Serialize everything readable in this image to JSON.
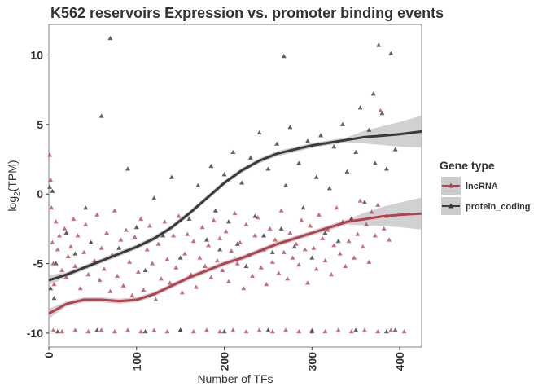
{
  "chart_data": {
    "type": "scatter",
    "title": "K562 reservoirs Expression vs. promoter binding events",
    "xlabel": "Number of TFs",
    "ylabel_main": "log",
    "ylabel_sub": "2",
    "ylabel_tail": "(TPM)",
    "xlim": [
      0,
      425
    ],
    "ylim": [
      -11,
      12.2
    ],
    "xticks": [
      0,
      100,
      200,
      300,
      400
    ],
    "xtick_labels": [
      "0",
      "100",
      "200",
      "300",
      "400"
    ],
    "yticks": [
      -10,
      -5,
      0,
      5,
      10
    ],
    "ytick_labels": [
      "-10",
      "-5",
      "0",
      "5",
      "10"
    ],
    "grid": false,
    "legend": {
      "title": "Gene type",
      "position": "right",
      "entries": [
        "lncRNA",
        "protein_coding"
      ]
    },
    "series": [
      {
        "name": "lncRNA",
        "color": "#b5404e",
        "marker": "triangle",
        "points": [
          [
            1,
            2.8
          ],
          [
            2,
            1.0
          ],
          [
            3,
            -1.0
          ],
          [
            4,
            -3.5
          ],
          [
            5,
            -5.0
          ],
          [
            6,
            -6.5
          ],
          [
            8,
            -2.0
          ],
          [
            10,
            -4.0
          ],
          [
            12,
            -3.0
          ],
          [
            15,
            -5.5
          ],
          [
            18,
            -2.5
          ],
          [
            20,
            -6.0
          ],
          [
            22,
            -4.5
          ],
          [
            25,
            -3.8
          ],
          [
            28,
            -1.8
          ],
          [
            30,
            -5.2
          ],
          [
            33,
            -3.0
          ],
          [
            36,
            -6.8
          ],
          [
            40,
            -4.2
          ],
          [
            42,
            -2.2
          ],
          [
            45,
            -5.8
          ],
          [
            48,
            -3.5
          ],
          [
            52,
            -4.8
          ],
          [
            55,
            -1.5
          ],
          [
            58,
            -6.2
          ],
          [
            60,
            -3.9
          ],
          [
            63,
            -5.4
          ],
          [
            66,
            -2.8
          ],
          [
            70,
            -7.0
          ],
          [
            72,
            -4.4
          ],
          [
            75,
            -1.2
          ],
          [
            78,
            -5.9
          ],
          [
            82,
            -3.3
          ],
          [
            85,
            -6.6
          ],
          [
            88,
            -2.6
          ],
          [
            92,
            -4.9
          ],
          [
            95,
            -7.3
          ],
          [
            98,
            -3.1
          ],
          [
            102,
            -5.6
          ],
          [
            105,
            -1.8
          ],
          [
            108,
            -6.9
          ],
          [
            112,
            -4.0
          ],
          [
            115,
            -2.3
          ],
          [
            118,
            -5.0
          ],
          [
            122,
            -7.6
          ],
          [
            125,
            -3.6
          ],
          [
            128,
            -6.1
          ],
          [
            132,
            -2.0
          ],
          [
            135,
            -4.7
          ],
          [
            138,
            -6.4
          ],
          [
            142,
            -3.0
          ],
          [
            145,
            -5.3
          ],
          [
            148,
            -1.6
          ],
          [
            152,
            -7.1
          ],
          [
            155,
            -4.3
          ],
          [
            158,
            -2.9
          ],
          [
            162,
            -5.8
          ],
          [
            165,
            -3.4
          ],
          [
            168,
            -6.7
          ],
          [
            172,
            -4.6
          ],
          [
            175,
            -2.4
          ],
          [
            178,
            -5.2
          ],
          [
            182,
            -3.7
          ],
          [
            185,
            -6.0
          ],
          [
            188,
            -1.9
          ],
          [
            192,
            -4.8
          ],
          [
            195,
            -3.2
          ],
          [
            198,
            -5.5
          ],
          [
            202,
            -2.7
          ],
          [
            205,
            -6.3
          ],
          [
            208,
            -4.1
          ],
          [
            212,
            -1.4
          ],
          [
            215,
            -5.0
          ],
          [
            218,
            -3.5
          ],
          [
            222,
            -6.8
          ],
          [
            225,
            -2.2
          ],
          [
            228,
            -4.4
          ],
          [
            232,
            -5.9
          ],
          [
            235,
            -3.0
          ],
          [
            238,
            -1.7
          ],
          [
            242,
            -5.3
          ],
          [
            245,
            -4.0
          ],
          [
            248,
            -6.5
          ],
          [
            252,
            -2.5
          ],
          [
            255,
            -4.9
          ],
          [
            258,
            -3.3
          ],
          [
            262,
            -5.7
          ],
          [
            265,
            -1.2
          ],
          [
            268,
            -4.2
          ],
          [
            272,
            -6.1
          ],
          [
            275,
            -2.8
          ],
          [
            278,
            -4.6
          ],
          [
            282,
            -3.6
          ],
          [
            285,
            -5.1
          ],
          [
            288,
            -1.9
          ],
          [
            292,
            -4.0
          ],
          [
            295,
            -6.4
          ],
          [
            298,
            -2.3
          ],
          [
            302,
            -3.9
          ],
          [
            305,
            -5.4
          ],
          [
            308,
            -1.5
          ],
          [
            312,
            -3.2
          ],
          [
            315,
            -4.8
          ],
          [
            318,
            -2.6
          ],
          [
            322,
            -5.8
          ],
          [
            325,
            -3.7
          ],
          [
            328,
            -1.0
          ],
          [
            332,
            -4.3
          ],
          [
            335,
            -2.0
          ],
          [
            338,
            -5.2
          ],
          [
            342,
            -3.4
          ],
          [
            345,
            -1.8
          ],
          [
            348,
            -4.6
          ],
          [
            352,
            -2.9
          ],
          [
            355,
            -0.5
          ],
          [
            358,
            -3.8
          ],
          [
            362,
            -2.2
          ],
          [
            365,
            -4.9
          ],
          [
            368,
            -1.3
          ],
          [
            372,
            -3.0
          ],
          [
            375,
            -0.8
          ],
          [
            378,
            6.0
          ],
          [
            382,
            -2.5
          ],
          [
            385,
            -1.6
          ],
          [
            388,
            -3.3
          ],
          [
            5,
            -9.8
          ],
          [
            15,
            -9.9
          ],
          [
            30,
            -9.8
          ],
          [
            45,
            -9.9
          ],
          [
            60,
            -9.8
          ],
          [
            75,
            -9.9
          ],
          [
            90,
            -9.8
          ],
          [
            105,
            -9.9
          ],
          [
            120,
            -9.8
          ],
          [
            135,
            -9.9
          ],
          [
            150,
            -9.8
          ],
          [
            165,
            -9.9
          ],
          [
            180,
            -9.8
          ],
          [
            195,
            -9.9
          ],
          [
            210,
            -9.8
          ],
          [
            225,
            -9.9
          ],
          [
            240,
            -9.8
          ],
          [
            255,
            -9.9
          ],
          [
            270,
            -9.8
          ],
          [
            285,
            -9.9
          ],
          [
            300,
            -9.8
          ],
          [
            315,
            -9.9
          ],
          [
            330,
            -9.8
          ],
          [
            345,
            -9.9
          ],
          [
            360,
            -9.8
          ],
          [
            375,
            -9.9
          ],
          [
            390,
            -9.8
          ],
          [
            405,
            -9.9
          ]
        ],
        "trend": [
          [
            0,
            -8.6
          ],
          [
            20,
            -7.9
          ],
          [
            40,
            -7.6
          ],
          [
            60,
            -7.6
          ],
          [
            80,
            -7.7
          ],
          [
            100,
            -7.6
          ],
          [
            120,
            -7.2
          ],
          [
            140,
            -6.6
          ],
          [
            160,
            -6.0
          ],
          [
            180,
            -5.5
          ],
          [
            200,
            -5.0
          ],
          [
            220,
            -4.6
          ],
          [
            240,
            -4.1
          ],
          [
            260,
            -3.6
          ],
          [
            280,
            -3.2
          ],
          [
            300,
            -2.8
          ],
          [
            320,
            -2.4
          ],
          [
            340,
            -2.0
          ],
          [
            360,
            -1.8
          ],
          [
            380,
            -1.6
          ],
          [
            400,
            -1.5
          ],
          [
            425,
            -1.4
          ]
        ]
      },
      {
        "name": "protein_coding",
        "color": "#3a3a3a",
        "marker": "triangle",
        "points": [
          [
            1,
            0.5
          ],
          [
            2,
            -6.8
          ],
          [
            4,
            0.2
          ],
          [
            6,
            -7.5
          ],
          [
            8,
            -5.0
          ],
          [
            70,
            11.2
          ],
          [
            60,
            5.6
          ],
          [
            42,
            -1.0
          ],
          [
            90,
            1.8
          ],
          [
            120,
            -0.3
          ],
          [
            130,
            -3.0
          ],
          [
            140,
            1.2
          ],
          [
            150,
            -4.6
          ],
          [
            160,
            -1.8
          ],
          [
            170,
            0.6
          ],
          [
            180,
            -3.3
          ],
          [
            185,
            2.0
          ],
          [
            190,
            -1.2
          ],
          [
            195,
            -4.0
          ],
          [
            200,
            1.4
          ],
          [
            205,
            -2.0
          ],
          [
            210,
            3.0
          ],
          [
            215,
            -3.6
          ],
          [
            220,
            0.8
          ],
          [
            225,
            -5.2
          ],
          [
            230,
            2.6
          ],
          [
            235,
            -1.6
          ],
          [
            240,
            4.4
          ],
          [
            245,
            -3.0
          ],
          [
            250,
            1.8
          ],
          [
            255,
            -4.2
          ],
          [
            260,
            3.6
          ],
          [
            265,
            -2.5
          ],
          [
            268,
            9.9
          ],
          [
            270,
            0.6
          ],
          [
            275,
            4.8
          ],
          [
            280,
            -3.8
          ],
          [
            285,
            2.2
          ],
          [
            290,
            -1.0
          ],
          [
            295,
            3.8
          ],
          [
            300,
            -4.6
          ],
          [
            305,
            1.2
          ],
          [
            310,
            4.2
          ],
          [
            315,
            -2.8
          ],
          [
            320,
            0.4
          ],
          [
            325,
            3.4
          ],
          [
            330,
            -3.4
          ],
          [
            335,
            5.0
          ],
          [
            340,
            1.6
          ],
          [
            345,
            -1.8
          ],
          [
            350,
            3.0
          ],
          [
            355,
            6.2
          ],
          [
            360,
            -0.6
          ],
          [
            365,
            4.6
          ],
          [
            370,
            7.2
          ],
          [
            372,
            2.2
          ],
          [
            376,
            10.7
          ],
          [
            380,
            5.8
          ],
          [
            385,
            1.8
          ],
          [
            390,
            10.1
          ],
          [
            395,
            3.2
          ],
          [
            48,
            -3.5
          ],
          [
            100,
            -2.4
          ],
          [
            110,
            -5.5
          ],
          [
            80,
            -3.9
          ],
          [
            30,
            -4.3
          ],
          [
            20,
            -2.8
          ],
          [
            10,
            -9.9
          ],
          [
            55,
            -9.8
          ],
          [
            110,
            -9.9
          ],
          [
            150,
            -9.8
          ],
          [
            200,
            -9.9
          ],
          [
            250,
            -9.8
          ],
          [
            300,
            -9.9
          ],
          [
            350,
            -9.8
          ],
          [
            385,
            -9.9
          ],
          [
            395,
            -9.8
          ]
        ],
        "trend": [
          [
            0,
            -6.2
          ],
          [
            20,
            -5.8
          ],
          [
            40,
            -5.3
          ],
          [
            60,
            -4.8
          ],
          [
            80,
            -4.3
          ],
          [
            100,
            -3.8
          ],
          [
            120,
            -3.2
          ],
          [
            140,
            -2.4
          ],
          [
            160,
            -1.4
          ],
          [
            180,
            -0.3
          ],
          [
            200,
            0.8
          ],
          [
            220,
            1.7
          ],
          [
            240,
            2.4
          ],
          [
            260,
            2.9
          ],
          [
            280,
            3.2
          ],
          [
            300,
            3.5
          ],
          [
            320,
            3.7
          ],
          [
            340,
            3.9
          ],
          [
            360,
            4.1
          ],
          [
            380,
            4.2
          ],
          [
            400,
            4.3
          ],
          [
            425,
            4.5
          ]
        ]
      }
    ]
  }
}
